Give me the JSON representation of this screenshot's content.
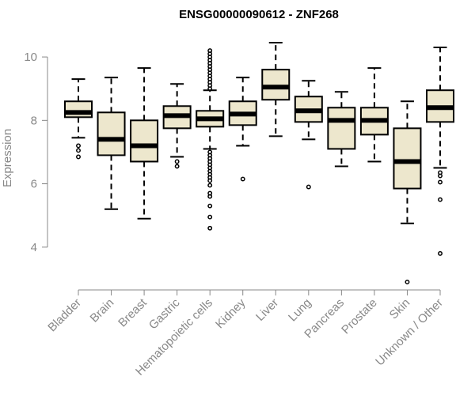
{
  "chart_data": {
    "type": "box",
    "title": "ENSG00000090612 - ZNF268",
    "xlabel": "",
    "ylabel": "Expression",
    "ylim": [
      2.7,
      10.8
    ],
    "yticks": [
      4,
      6,
      8,
      10
    ],
    "box_fill": "#ede7cd",
    "categories": [
      "Bladder",
      "Brain",
      "Breast",
      "Gastric",
      "Hematopoietic cells",
      "Kidney",
      "Liver",
      "Lung",
      "Pancreas",
      "Prostate",
      "Skin",
      "Unknown / Other"
    ],
    "boxes": [
      {
        "category": "Bladder",
        "whisker_low": 7.45,
        "q1": 8.1,
        "median": 8.25,
        "q3": 8.6,
        "whisker_high": 9.3,
        "outliers": [
          7.2,
          7.05,
          6.85
        ]
      },
      {
        "category": "Brain",
        "whisker_low": 5.2,
        "q1": 6.9,
        "median": 7.4,
        "q3": 8.25,
        "whisker_high": 9.35,
        "outliers": []
      },
      {
        "category": "Breast",
        "whisker_low": 4.9,
        "q1": 6.7,
        "median": 7.2,
        "q3": 8.0,
        "whisker_high": 9.65,
        "outliers": []
      },
      {
        "category": "Gastric",
        "whisker_low": 6.85,
        "q1": 7.75,
        "median": 8.15,
        "q3": 8.45,
        "whisker_high": 9.15,
        "outliers": [
          6.7,
          6.55
        ]
      },
      {
        "category": "Hematopoietic cells",
        "whisker_low": 7.1,
        "q1": 7.8,
        "median": 8.05,
        "q3": 8.3,
        "whisker_high": 8.95,
        "outliers": [
          10.2,
          10.1,
          10.0,
          9.9,
          9.8,
          9.7,
          9.6,
          9.5,
          9.4,
          9.3,
          9.2,
          9.1,
          9.0,
          7.0,
          6.9,
          6.8,
          6.7,
          6.6,
          6.5,
          6.4,
          6.3,
          6.2,
          6.1,
          5.95,
          5.7,
          5.6,
          5.3,
          4.95,
          4.6
        ]
      },
      {
        "category": "Kidney",
        "whisker_low": 7.2,
        "q1": 7.85,
        "median": 8.2,
        "q3": 8.6,
        "whisker_high": 9.35,
        "outliers": [
          6.15
        ]
      },
      {
        "category": "Liver",
        "whisker_low": 7.5,
        "q1": 8.65,
        "median": 9.05,
        "q3": 9.6,
        "whisker_high": 10.45,
        "outliers": []
      },
      {
        "category": "Lung",
        "whisker_low": 7.4,
        "q1": 7.95,
        "median": 8.3,
        "q3": 8.75,
        "whisker_high": 9.25,
        "outliers": [
          5.9
        ]
      },
      {
        "category": "Pancreas",
        "whisker_low": 6.55,
        "q1": 7.1,
        "median": 8.0,
        "q3": 8.4,
        "whisker_high": 8.9,
        "outliers": []
      },
      {
        "category": "Prostate",
        "whisker_low": 6.7,
        "q1": 7.55,
        "median": 8.0,
        "q3": 8.4,
        "whisker_high": 9.65,
        "outliers": []
      },
      {
        "category": "Skin",
        "whisker_low": 4.75,
        "q1": 5.85,
        "median": 6.7,
        "q3": 7.75,
        "whisker_high": 8.6,
        "outliers": [
          2.9
        ]
      },
      {
        "category": "Unknown / Other",
        "whisker_low": 6.5,
        "q1": 7.95,
        "median": 8.4,
        "q3": 8.95,
        "whisker_high": 10.3,
        "outliers": [
          6.35,
          6.25,
          6.05,
          5.5,
          3.8
        ]
      }
    ]
  }
}
